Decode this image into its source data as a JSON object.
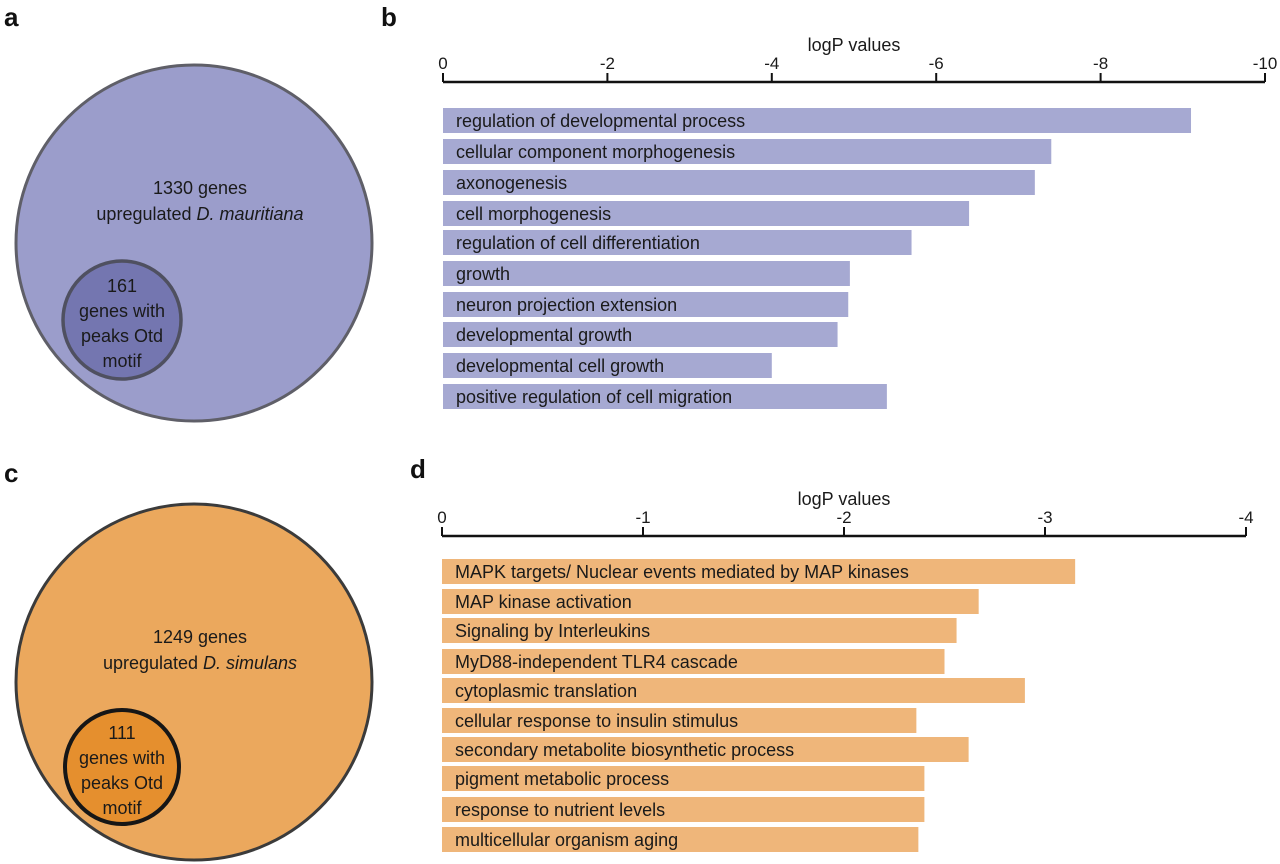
{
  "panels": {
    "a": "a",
    "b": "b",
    "c": "c",
    "d": "d"
  },
  "venn": [
    {
      "outer_line1": "1330 genes",
      "outer_line2_prefix": "upregulated ",
      "outer_line2_species": "D. mauritiana",
      "inner_lines": [
        "161",
        "genes with",
        "peaks Otd",
        "motif"
      ],
      "outer_fill": "#9b9dcb",
      "inner_fill": "#7476b0",
      "outer_stroke": "#5f5f68",
      "inner_stroke": "#4f5060"
    },
    {
      "outer_line1": "1249 genes",
      "outer_line2_prefix": "upregulated ",
      "outer_line2_species": "D. simulans",
      "inner_lines": [
        "111",
        "genes with",
        "peaks Otd",
        "motif"
      ],
      "outer_fill": "#eba85d",
      "inner_fill": "#e58f2e",
      "outer_stroke": "#3b3b3b",
      "inner_stroke": "#161616"
    }
  ],
  "chart_data": [
    {
      "type": "bar",
      "orientation": "horizontal",
      "xlabel": "logP values",
      "xlim": [
        0,
        -10
      ],
      "ticks": [
        0,
        -2,
        -4,
        -6,
        -8,
        -10
      ],
      "tick_labels": [
        "0",
        "-2",
        "-4",
        "-6",
        "-8",
        "-10"
      ],
      "axis_position": "top",
      "bar_color": "#a6a9d2",
      "categories": [
        "regulation of developmental process",
        "cellular component morphogenesis",
        "axonogenesis",
        "cell morphogenesis",
        "regulation of cell differentiation",
        "growth",
        "neuron projection extension",
        "developmental growth",
        "developmental cell growth",
        "positive regulation of cell migration"
      ],
      "values": [
        -9.1,
        -7.4,
        -7.2,
        -6.4,
        -5.7,
        -4.95,
        -4.93,
        -4.8,
        -4.0,
        -5.4
      ]
    },
    {
      "type": "bar",
      "orientation": "horizontal",
      "xlabel": "logP values",
      "xlim": [
        0,
        -4
      ],
      "ticks": [
        0,
        -1,
        -2,
        -3,
        -4
      ],
      "tick_labels": [
        "0",
        "-1",
        "-2",
        "-3",
        "-4"
      ],
      "axis_position": "top",
      "bar_color": "#efb67a",
      "categories": [
        "MAPK targets/ Nuclear events mediated by MAP kinases",
        "MAP kinase activation",
        "Signaling by Interleukins",
        "MyD88-independent TLR4 cascade",
        "cytoplasmic translation",
        "cellular response to insulin stimulus",
        "secondary metabolite biosynthetic process",
        "pigment metabolic process",
        "response to nutrient levels",
        "multicellular organism aging"
      ],
      "values": [
        -3.15,
        -2.67,
        -2.56,
        -2.5,
        -2.9,
        -2.36,
        -2.62,
        -2.4,
        -2.4,
        -2.37
      ]
    }
  ]
}
